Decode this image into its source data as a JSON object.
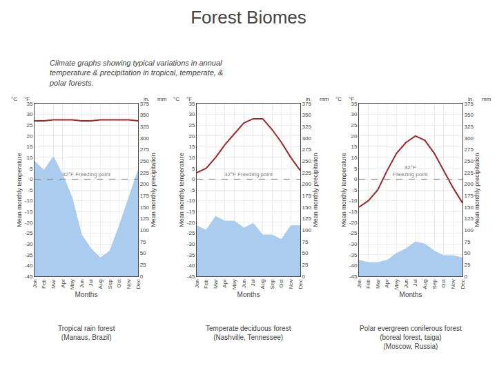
{
  "title": "Forest Biomes",
  "subtitle": "Climate graphs showing typical variations in annual\ntemperature & precipitation in tropical, temperate, &\npolar forests.",
  "chart_data": [
    {
      "type": "line",
      "title": "Tropical rain forest\n(Manaus, Brazil)",
      "xlabel": "Months",
      "ylabel": "Mean monthly temperature",
      "y2label": "Mean monthly precipitation",
      "categories": [
        "Jan",
        "Feb",
        "Mar",
        "Apr",
        "May",
        "Jun",
        "Jul",
        "Aug",
        "Sep",
        "Oct",
        "Nov",
        "Dec"
      ],
      "series": [
        {
          "type": "area",
          "axis": "y2",
          "color": "#AACCEE",
          "values": [
            250,
            230,
            260,
            220,
            170,
            90,
            60,
            40,
            55,
            110,
            170,
            230
          ]
        },
        {
          "type": "line",
          "axis": "y",
          "color": "#AA2222",
          "values": [
            27,
            27,
            27.5,
            27.5,
            27.5,
            27,
            27,
            27.5,
            27.5,
            27.5,
            27.5,
            27
          ]
        }
      ],
      "ylim": [
        -45,
        35
      ],
      "yticks": [
        -45,
        -40,
        -35,
        -30,
        -25,
        -20,
        -15,
        -10,
        -5,
        0,
        5,
        10,
        15,
        20,
        25,
        30,
        35
      ],
      "y2lim": [
        0,
        375
      ],
      "y2ticks": [
        0,
        25,
        50,
        75,
        100,
        125,
        150,
        175,
        200,
        225,
        250,
        275,
        300,
        325,
        350,
        375
      ],
      "grid": true,
      "annotations": [
        {
          "text": "32°F Freezing point",
          "y": 0
        },
        {
          "text": "°C",
          "axis": "y"
        },
        {
          "text": "°F",
          "axis": "y"
        },
        {
          "text": "in.",
          "axis": "y2"
        },
        {
          "text": "mm",
          "axis": "y2"
        }
      ]
    },
    {
      "type": "line",
      "title": "Temperate deciduous forest\n(Nashville, Tennessee)",
      "xlabel": "Months",
      "ylabel": "Mean monthly temperature",
      "y2label": "Mean monthly precipitation",
      "categories": [
        "Jan",
        "Feb",
        "Mar",
        "Apr",
        "May",
        "Jun",
        "Jul",
        "Aug",
        "Sep",
        "Oct",
        "Nov",
        "Dec"
      ],
      "series": [
        {
          "type": "area",
          "axis": "y2",
          "color": "#AACCEE",
          "values": [
            110,
            100,
            130,
            120,
            120,
            105,
            115,
            90,
            90,
            80,
            110,
            110
          ]
        },
        {
          "type": "line",
          "axis": "y",
          "color": "#AA2222",
          "values": [
            3,
            5,
            10,
            16,
            21,
            26,
            28,
            28,
            23,
            17,
            10,
            4
          ]
        }
      ],
      "ylim": [
        -45,
        35
      ],
      "yticks": [
        -45,
        -40,
        -35,
        -30,
        -25,
        -20,
        -15,
        -10,
        -5,
        0,
        5,
        10,
        15,
        20,
        25,
        30,
        35
      ],
      "y2lim": [
        0,
        375
      ],
      "y2ticks": [
        0,
        25,
        50,
        75,
        100,
        125,
        150,
        175,
        200,
        225,
        250,
        275,
        300,
        325,
        350,
        375
      ],
      "grid": true,
      "annotations": [
        {
          "text": "32°F Freezing point",
          "y": 0
        },
        {
          "text": "°C",
          "axis": "y"
        },
        {
          "text": "°F",
          "axis": "y"
        },
        {
          "text": "in.",
          "axis": "y2"
        },
        {
          "text": "mm",
          "axis": "y2"
        }
      ]
    },
    {
      "type": "line",
      "title": "Polar evergreen coniferous forest\n(boreal forest, taiga)\n(Moscow, Russia)",
      "xlabel": "Months",
      "ylabel": "Mean monthly temperature",
      "y2label": "Mean monthly precipitation",
      "categories": [
        "Jan",
        "Feb",
        "Mar",
        "Apr",
        "May",
        "Jun",
        "Jul",
        "Aug",
        "Sep",
        "Oct",
        "Nov",
        "Dec"
      ],
      "series": [
        {
          "type": "area",
          "axis": "y2",
          "color": "#AACCEE",
          "values": [
            35,
            30,
            30,
            35,
            50,
            60,
            75,
            70,
            55,
            45,
            45,
            40
          ]
        },
        {
          "type": "line",
          "axis": "y",
          "color": "#AA2222",
          "values": [
            -13,
            -10,
            -5,
            4,
            12,
            17,
            20,
            18,
            12,
            4,
            -4,
            -11
          ]
        }
      ],
      "ylim": [
        -45,
        35
      ],
      "yticks": [
        -45,
        -40,
        -35,
        -30,
        -25,
        -20,
        -15,
        -10,
        -5,
        0,
        5,
        10,
        15,
        20,
        25,
        30,
        35
      ],
      "y2lim": [
        0,
        375
      ],
      "y2ticks": [
        0,
        25,
        50,
        75,
        100,
        125,
        150,
        175,
        200,
        225,
        250,
        275,
        300,
        325,
        350,
        375
      ],
      "grid": true,
      "annotations": [
        {
          "text": "32°F\nFreezing point",
          "y": 0
        },
        {
          "text": "°C",
          "axis": "y"
        },
        {
          "text": "°F",
          "axis": "y"
        },
        {
          "text": "in.",
          "axis": "y2"
        },
        {
          "text": "mm",
          "axis": "y2"
        }
      ]
    }
  ]
}
